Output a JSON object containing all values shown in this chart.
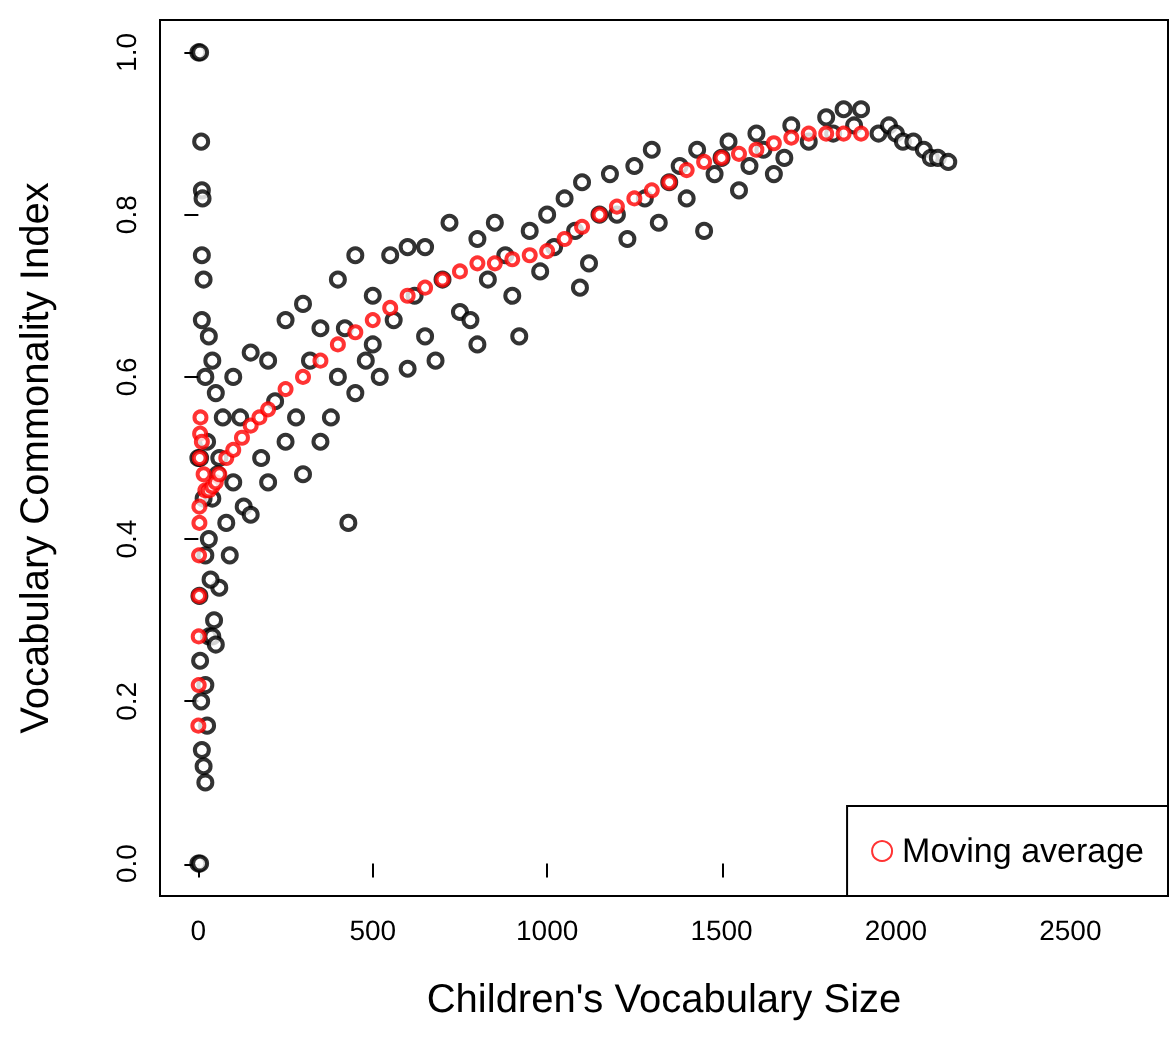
{
  "chart_data": {
    "type": "scatter",
    "xlabel": "Children's Vocabulary Size",
    "ylabel": "Vocabulary Commonality Index",
    "xlim": [
      -110,
      2780
    ],
    "ylim": [
      -0.04,
      1.04
    ],
    "xticks": [
      0,
      500,
      1000,
      1500,
      2000,
      2500
    ],
    "yticks": [
      {
        "value": 0,
        "label": "0.0"
      },
      {
        "value": 0.2,
        "label": "0.2"
      },
      {
        "value": 0.4,
        "label": "0.4"
      },
      {
        "value": 0.6,
        "label": "0.6"
      },
      {
        "value": 0.8,
        "label": "0.8"
      },
      {
        "value": 1,
        "label": "1.0"
      }
    ],
    "grid": false,
    "legend": "bottom right",
    "marker": "circle",
    "series": [
      {
        "color": "#000000",
        "x": [
          0,
          0,
          5,
          5,
          8,
          10,
          12,
          10,
          15,
          10,
          5,
          0,
          3,
          5,
          8,
          10,
          15,
          20,
          25,
          20,
          30,
          40,
          50,
          60,
          20,
          30,
          40,
          50,
          30,
          40,
          60,
          70,
          80,
          90,
          100,
          100,
          120,
          130,
          150,
          150,
          180,
          200,
          200,
          220,
          250,
          250,
          280,
          300,
          300,
          320,
          350,
          350,
          380,
          400,
          400,
          420,
          430,
          450,
          450,
          480,
          500,
          500,
          520,
          550,
          560,
          600,
          600,
          620,
          650,
          650,
          680,
          700,
          720,
          750,
          780,
          800,
          800,
          830,
          850,
          880,
          900,
          920,
          950,
          980,
          1000,
          1020,
          1050,
          1080,
          1094,
          1100,
          1120,
          1150,
          1180,
          1200,
          1230,
          1250,
          1280,
          1300,
          1320,
          1350,
          1380,
          1400,
          1430,
          1450,
          1480,
          1500,
          1520,
          1550,
          1580,
          1600,
          1620,
          1650,
          1680,
          1700,
          1750,
          1800,
          1820,
          1850,
          1880,
          1900,
          1950,
          1980,
          2000,
          2020,
          2050,
          2080,
          2100,
          2120,
          2150,
          15,
          25,
          35,
          45,
          55,
          20
        ],
        "values": [
          1.0,
          0.0,
          1.0,
          0.0,
          0.89,
          0.83,
          0.82,
          0.75,
          0.72,
          0.67,
          0.5,
          0.5,
          0.33,
          0.25,
          0.2,
          0.14,
          0.12,
          0.1,
          0.17,
          0.22,
          0.28,
          0.28,
          0.27,
          0.34,
          0.6,
          0.65,
          0.62,
          0.58,
          0.4,
          0.45,
          0.5,
          0.55,
          0.42,
          0.38,
          0.47,
          0.6,
          0.55,
          0.44,
          0.43,
          0.63,
          0.5,
          0.47,
          0.62,
          0.57,
          0.52,
          0.67,
          0.55,
          0.48,
          0.69,
          0.62,
          0.52,
          0.66,
          0.55,
          0.6,
          0.72,
          0.66,
          0.42,
          0.58,
          0.75,
          0.62,
          0.7,
          0.64,
          0.6,
          0.75,
          0.67,
          0.61,
          0.76,
          0.7,
          0.65,
          0.76,
          0.62,
          0.72,
          0.79,
          0.68,
          0.67,
          0.64,
          0.77,
          0.72,
          0.79,
          0.75,
          0.7,
          0.65,
          0.78,
          0.73,
          0.8,
          0.76,
          0.82,
          0.78,
          0.71,
          0.84,
          0.74,
          0.8,
          0.85,
          0.8,
          0.77,
          0.86,
          0.82,
          0.88,
          0.79,
          0.84,
          0.86,
          0.82,
          0.88,
          0.78,
          0.85,
          0.87,
          0.89,
          0.83,
          0.86,
          0.9,
          0.88,
          0.85,
          0.87,
          0.91,
          0.89,
          0.92,
          0.9,
          0.93,
          0.91,
          0.93,
          0.9,
          0.91,
          0.9,
          0.89,
          0.89,
          0.88,
          0.87,
          0.87,
          0.865,
          0.45,
          0.52,
          0.35,
          0.3,
          0.48,
          0.38
        ]
      },
      {
        "name": "Moving average",
        "color": "#ff0000",
        "x": [
          0,
          1,
          1,
          2,
          2,
          3,
          3,
          4,
          5,
          6,
          10,
          15,
          20,
          30,
          40,
          50,
          60,
          80,
          100,
          125,
          150,
          175,
          200,
          250,
          300,
          350,
          400,
          450,
          500,
          550,
          600,
          650,
          700,
          750,
          800,
          850,
          900,
          950,
          1000,
          1050,
          1100,
          1150,
          1200,
          1250,
          1300,
          1350,
          1400,
          1450,
          1500,
          1550,
          1600,
          1650,
          1700,
          1750,
          1800,
          1850,
          1900
        ],
        "values": [
          0.17,
          0.22,
          0.28,
          0.33,
          0.38,
          0.42,
          0.44,
          0.5,
          0.53,
          0.55,
          0.52,
          0.48,
          0.46,
          0.46,
          0.465,
          0.47,
          0.48,
          0.5,
          0.51,
          0.525,
          0.54,
          0.55,
          0.56,
          0.585,
          0.6,
          0.62,
          0.64,
          0.655,
          0.67,
          0.685,
          0.7,
          0.71,
          0.72,
          0.73,
          0.74,
          0.74,
          0.745,
          0.75,
          0.755,
          0.77,
          0.785,
          0.8,
          0.81,
          0.82,
          0.83,
          0.84,
          0.855,
          0.865,
          0.87,
          0.875,
          0.88,
          0.888,
          0.895,
          0.9,
          0.9,
          0.9,
          0.9
        ]
      }
    ]
  }
}
